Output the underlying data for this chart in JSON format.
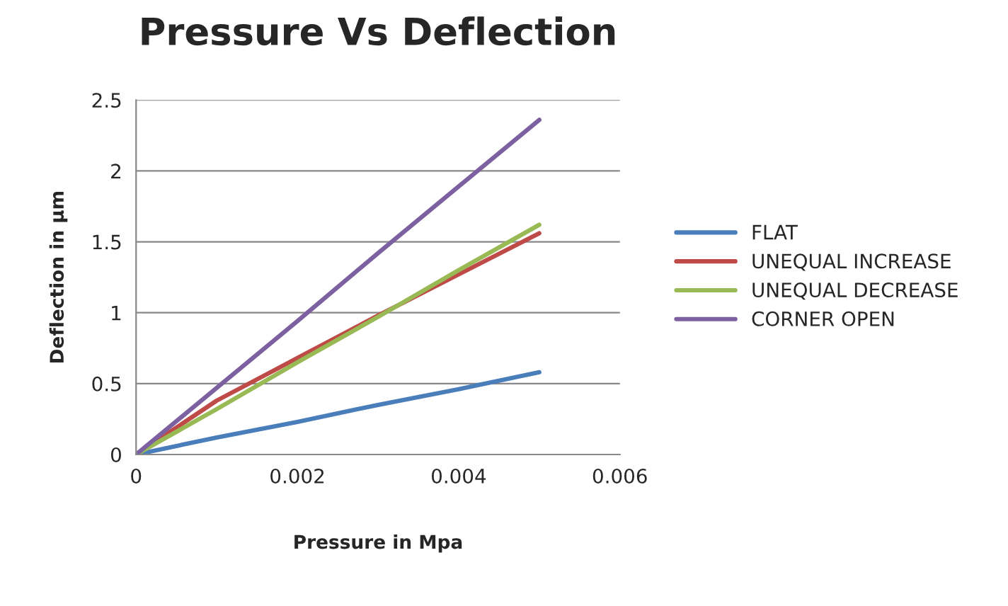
{
  "chart_data": {
    "type": "line",
    "title": "Pressure Vs Deflection",
    "xlabel": "Pressure in Mpa",
    "ylabel": "Deflection in μm",
    "x": [
      0,
      0.001,
      0.002,
      0.003,
      0.004,
      0.005
    ],
    "series": [
      {
        "name": "FLAT",
        "color": "#4a7ebb",
        "values": [
          0,
          0.12,
          0.23,
          0.35,
          0.46,
          0.58
        ]
      },
      {
        "name": "UNEQUAL INCREASE",
        "color": "#be4b48",
        "values": [
          0,
          0.38,
          0.68,
          0.98,
          1.27,
          1.56
        ]
      },
      {
        "name": "UNEQUAL DECREASE",
        "color": "#98b954",
        "values": [
          0,
          0.32,
          0.65,
          0.97,
          1.3,
          1.62
        ]
      },
      {
        "name": "CORNER OPEN",
        "color": "#7d60a0",
        "values": [
          0,
          0.47,
          0.94,
          1.42,
          1.89,
          2.36
        ]
      }
    ],
    "xlim": [
      0,
      0.006
    ],
    "xticks": [
      0,
      0.002,
      0.004,
      0.006
    ],
    "ylim": [
      0,
      2.5
    ],
    "yticks": [
      0,
      0.5,
      1,
      1.5,
      2,
      2.5
    ],
    "grid": "y",
    "legend": "right",
    "marker": "none",
    "line_style": "solid"
  }
}
